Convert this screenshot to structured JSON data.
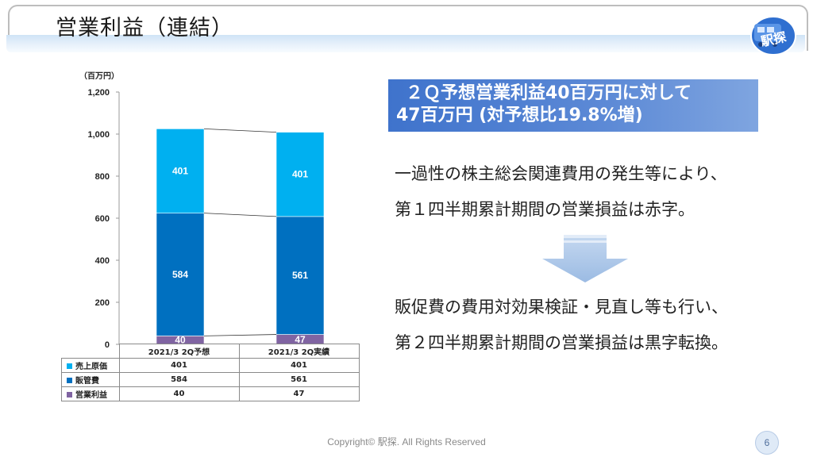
{
  "header": {
    "title": "営業利益（連結）",
    "logo_text": "駅探"
  },
  "chart_data": {
    "type": "bar",
    "stacked": true,
    "unit_label": "（百万円）",
    "ylim": [
      0,
      1200
    ],
    "yticks": [
      "0",
      "200",
      "400",
      "600",
      "800",
      "1,000",
      "1,200"
    ],
    "ytick_values": [
      0,
      200,
      400,
      600,
      800,
      1000,
      1200
    ],
    "categories": [
      "2021/3 2Q予想",
      "2021/3 2Q実績"
    ],
    "series": [
      {
        "name": "営業利益",
        "values": [
          40,
          47
        ],
        "color": "#8064a2"
      },
      {
        "name": "販管費",
        "values": [
          584,
          561
        ],
        "color": "#0070c0"
      },
      {
        "name": "売上原価",
        "values": [
          401,
          401
        ],
        "color": "#00b0f0"
      }
    ],
    "series_lines": true,
    "grid": false
  },
  "table": {
    "columns": [
      "2021/3 2Q予想",
      "2021/3 2Q実績"
    ],
    "rows": [
      {
        "label": "売上原価",
        "color": "#00b0f0",
        "values": [
          "401",
          "401"
        ]
      },
      {
        "label": "販管費",
        "color": "#0070c0",
        "values": [
          "584",
          "561"
        ]
      },
      {
        "label": "営業利益",
        "color": "#8064a2",
        "values": [
          "40",
          "47"
        ]
      }
    ]
  },
  "right": {
    "headline_line1": "２Ｑ予想営業利益40百万円に対して",
    "headline_line2": "47百万円 (対予想比19.8%増)",
    "para1_line1": "一過性の株主総会関連費用の発生等により、",
    "para1_line2": "第１四半期累計期間の営業損益は赤字。",
    "para2_line1": "販促費の費用対効果検証・見直し等も行い、",
    "para2_line2": "第２四半期累計期間の営業損益は黒字転換。",
    "arrow_icon": "down-arrow-icon"
  },
  "footer": {
    "copyright": "Copyright© 駅探. All Rights Reserved",
    "page_number": "6"
  }
}
